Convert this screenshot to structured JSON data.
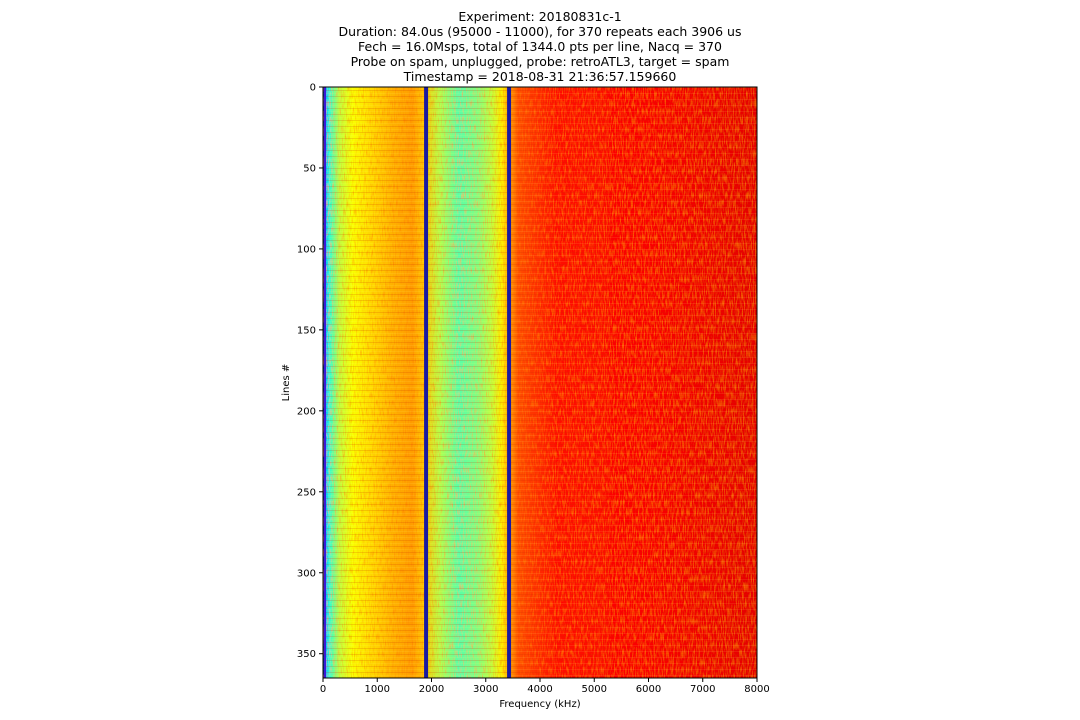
{
  "chart_data": {
    "type": "heatmap",
    "title_lines": [
      "Experiment: 20180831c-1",
      "Duration: 84.0us (95000 - 11000), for 370 repeats each 3906 us",
      "Fech = 16.0Msps, total of 1344.0 pts per line, Nacq = 370",
      "Probe on spam, unplugged, probe: retroATL3, target = spam",
      "Timestamp = 2018-08-31 21:36:57.159660"
    ],
    "xlabel": "Frequency (kHz)",
    "ylabel": "Lines #",
    "xlim": [
      0,
      8000
    ],
    "ylim": [
      0,
      365
    ],
    "y_inverted": true,
    "xticks": [
      0,
      1000,
      2000,
      3000,
      4000,
      5000,
      6000,
      7000,
      8000
    ],
    "yticks": [
      0,
      50,
      100,
      150,
      200,
      250,
      300,
      350
    ],
    "colormap": "jet",
    "columns": [
      {
        "freq_khz": 0,
        "level": 0.0
      },
      {
        "freq_khz": 40,
        "level": 0.3
      },
      {
        "freq_khz": 120,
        "level": 0.42
      },
      {
        "freq_khz": 300,
        "level": 0.56
      },
      {
        "freq_khz": 550,
        "level": 0.62
      },
      {
        "freq_khz": 900,
        "level": 0.66
      },
      {
        "freq_khz": 1300,
        "level": 0.7
      },
      {
        "freq_khz": 1650,
        "level": 0.72
      },
      {
        "freq_khz": 1850,
        "level": 0.68
      },
      {
        "freq_khz": 2150,
        "level": 0.55
      },
      {
        "freq_khz": 2500,
        "level": 0.46
      },
      {
        "freq_khz": 2850,
        "level": 0.5
      },
      {
        "freq_khz": 3100,
        "level": 0.56
      },
      {
        "freq_khz": 3300,
        "level": 0.64
      },
      {
        "freq_khz": 3600,
        "level": 0.8
      },
      {
        "freq_khz": 4300,
        "level": 0.86
      },
      {
        "freq_khz": 6000,
        "level": 0.88
      },
      {
        "freq_khz": 8000,
        "level": 0.9
      }
    ],
    "vertical_lines": [
      {
        "freq_khz": 1900,
        "color": "#1a1aa0"
      },
      {
        "freq_khz": 3430,
        "color": "#1a1aa0"
      }
    ],
    "edge_line_color": "#3a1ad8"
  }
}
